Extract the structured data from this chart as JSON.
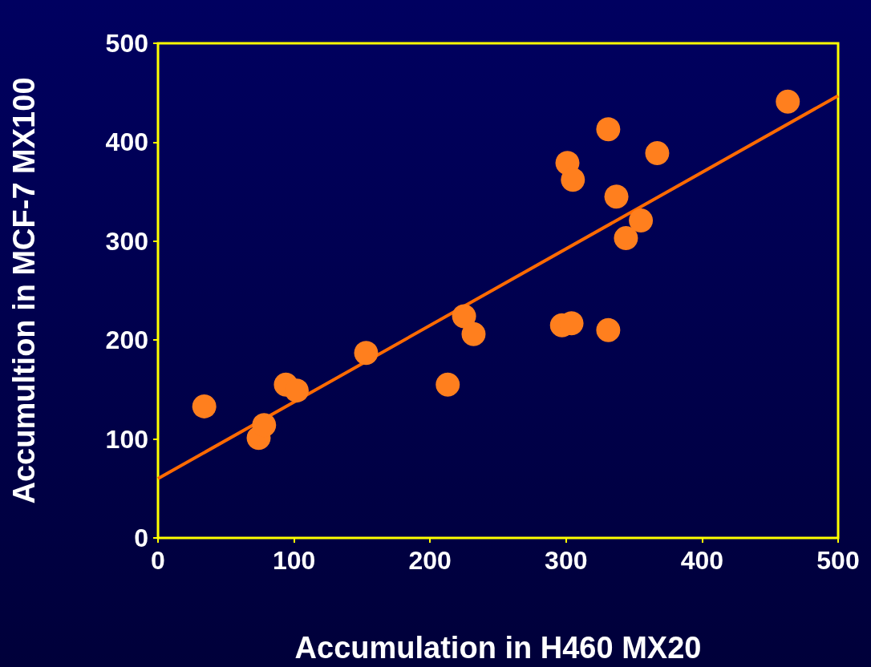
{
  "chart_data": {
    "type": "scatter",
    "xlabel": "Accumulation in H460 MX20",
    "ylabel": "Accumultion in MCF-7 MX100",
    "xlim": [
      0,
      500
    ],
    "ylim": [
      0,
      500
    ],
    "xticks": [
      0,
      100,
      200,
      300,
      400,
      500
    ],
    "yticks": [
      0,
      100,
      200,
      300,
      400,
      500
    ],
    "grid": false,
    "series": [
      {
        "marker": "circle",
        "color": "#ff7f1e",
        "x": [
          34,
          74,
          78,
          94,
          102,
          153,
          213,
          225,
          232,
          297,
          304,
          331,
          301,
          305,
          331,
          337,
          344,
          355,
          367,
          463
        ],
        "values": [
          133,
          101,
          114,
          155,
          149,
          187,
          155,
          224,
          206,
          215,
          217,
          210,
          379,
          362,
          413,
          345,
          303,
          321,
          389,
          441
        ]
      },
      {
        "type": "line",
        "marker": "none",
        "color": "#ff6a00",
        "x": [
          0,
          500
        ],
        "values": [
          60,
          447
        ]
      }
    ]
  }
}
